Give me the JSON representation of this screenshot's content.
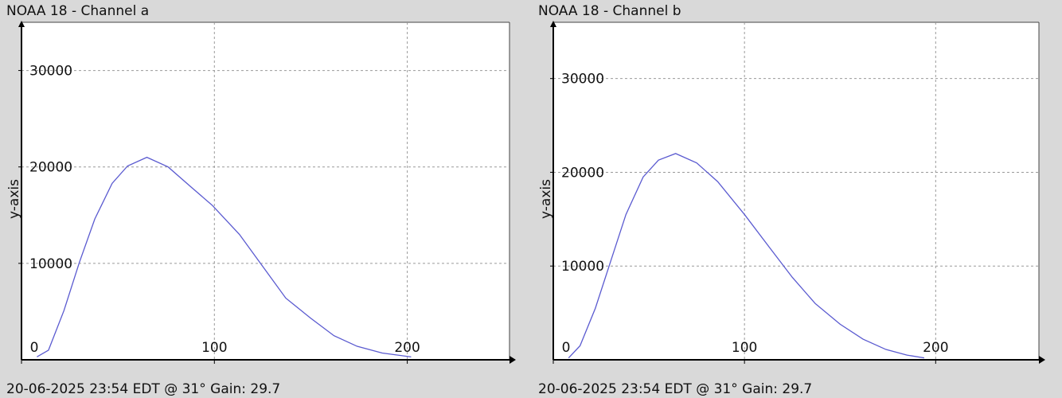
{
  "chart_data": [
    {
      "type": "line",
      "title": "NOAA 18 - Channel a",
      "footer": "20-06-2025 23:54 EDT @ 31° Gain: 29.7",
      "y_label": "y-axis",
      "x": [
        8,
        14,
        22,
        30,
        38,
        47,
        55,
        65,
        76,
        88,
        99,
        113,
        125,
        137,
        150,
        162,
        174,
        187,
        202
      ],
      "values": [
        300,
        1000,
        5100,
        10100,
        14600,
        18300,
        20100,
        21000,
        20000,
        17900,
        16000,
        13000,
        9700,
        6400,
        4300,
        2500,
        1400,
        700,
        300
      ],
      "color": "#5a5ad0",
      "xlim": [
        0,
        253
      ],
      "ylim": [
        0,
        35000
      ],
      "xticks": [
        0,
        100,
        200
      ],
      "yticks": [
        10000,
        20000,
        30000
      ],
      "grid": true
    },
    {
      "type": "line",
      "title": "NOAA 18 - Channel b",
      "footer": "20-06-2025 23:54 EDT @ 31° Gain: 29.7",
      "y_label": "y-axis",
      "x": [
        8,
        14,
        22,
        30,
        38,
        47,
        55,
        64,
        75,
        86,
        100,
        113,
        125,
        137,
        150,
        162,
        174,
        185,
        194
      ],
      "values": [
        200,
        1500,
        5500,
        10500,
        15500,
        19500,
        21300,
        22000,
        21000,
        19000,
        15500,
        12000,
        8800,
        6000,
        3800,
        2200,
        1100,
        500,
        200
      ],
      "color": "#5a5ad0",
      "xlim": [
        0,
        254
      ],
      "ylim": [
        0,
        36000
      ],
      "xticks": [
        0,
        100,
        200
      ],
      "yticks": [
        10000,
        20000,
        30000
      ],
      "grid": true
    }
  ]
}
